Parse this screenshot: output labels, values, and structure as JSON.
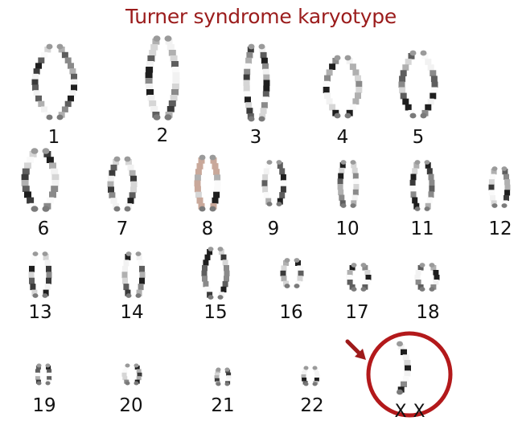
{
  "title": "Turner syndrome karyotype",
  "chromosomes": [
    {
      "label": "1"
    },
    {
      "label": "2"
    },
    {
      "label": "3"
    },
    {
      "label": "4"
    },
    {
      "label": "5"
    },
    {
      "label": "6"
    },
    {
      "label": "7"
    },
    {
      "label": "8"
    },
    {
      "label": "9"
    },
    {
      "label": "10"
    },
    {
      "label": "11"
    },
    {
      "label": "12"
    },
    {
      "label": "13"
    },
    {
      "label": "14"
    },
    {
      "label": "15"
    },
    {
      "label": "16"
    },
    {
      "label": "17"
    },
    {
      "label": "18"
    },
    {
      "label": "19"
    },
    {
      "label": "20"
    },
    {
      "label": "21"
    },
    {
      "label": "22"
    }
  ],
  "sex_chromosomes": {
    "labels": [
      "X",
      "X"
    ]
  },
  "colors": {
    "title": "#9b1c1c",
    "highlight_circle": "#b3191b",
    "arrow": "#9e1a1a"
  }
}
